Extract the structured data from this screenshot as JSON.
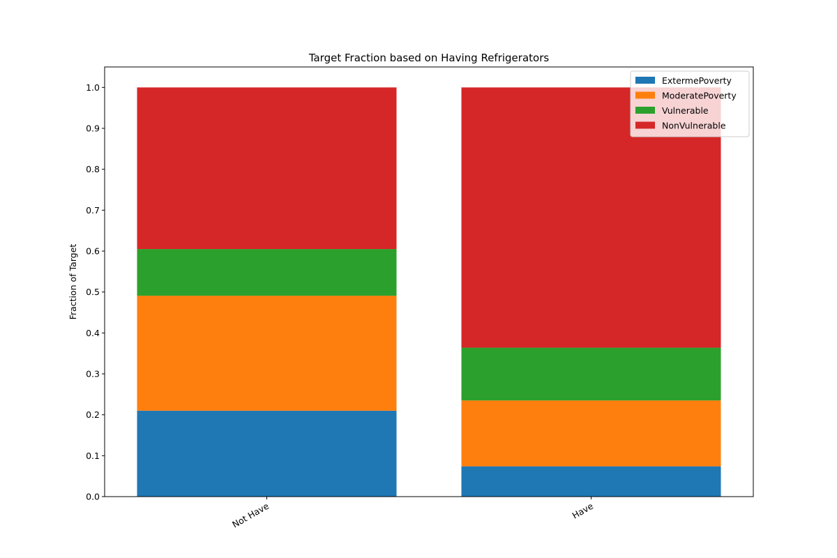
{
  "chart_data": {
    "type": "bar",
    "stacked": true,
    "title": "Target Fraction based on Having Refrigerators",
    "xlabel": "",
    "ylabel": "Fraction of Target",
    "categories": [
      "Not Have",
      "Have"
    ],
    "series": [
      {
        "name": "ExtermePoverty",
        "color": "#1f77b4",
        "values": [
          0.21,
          0.074
        ]
      },
      {
        "name": "ModeratePoverty",
        "color": "#ff7f0e",
        "values": [
          0.281,
          0.161
        ]
      },
      {
        "name": "Vulnerable",
        "color": "#2ca02c",
        "values": [
          0.114,
          0.129
        ]
      },
      {
        "name": "NonVulnerable",
        "color": "#d62728",
        "values": [
          0.395,
          0.636
        ]
      }
    ],
    "ylim": [
      0,
      1.05
    ],
    "yticks": [
      "0.0",
      "0.1",
      "0.2",
      "0.3",
      "0.4",
      "0.5",
      "0.6",
      "0.7",
      "0.8",
      "0.9",
      "1.0"
    ],
    "grid": false,
    "legend_position": "top-right"
  }
}
